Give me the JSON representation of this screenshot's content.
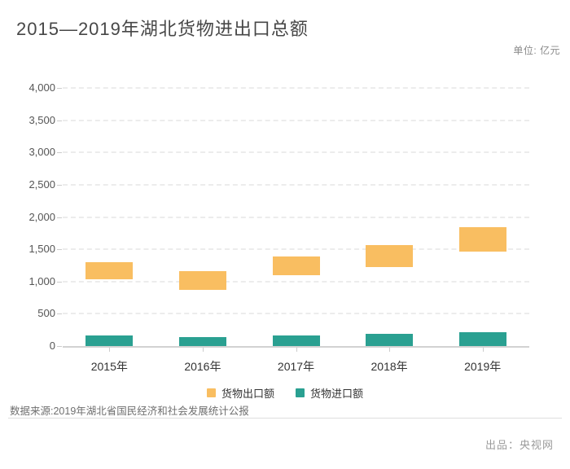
{
  "header": {
    "title": "2015—2019年湖北货物进出口总额",
    "unit_label": "单位: 亿元"
  },
  "footer": {
    "source": "数据来源:2019年湖北省国民经济和社会发展统计公报",
    "producer": "出品：央视网"
  },
  "chart_data": {
    "type": "bar",
    "subtype": "floating-range-columns",
    "title": "2015—2019年湖北货物进出口总额",
    "unit": "亿元",
    "categories": [
      "2015年",
      "2016年",
      "2017年",
      "2018年",
      "2019年"
    ],
    "series": [
      {
        "name": "货物出口额",
        "color": "#F9BE61",
        "ranges": [
          [
            1030,
            1300
          ],
          [
            875,
            1155
          ],
          [
            1095,
            1390
          ],
          [
            1220,
            1570
          ],
          [
            1460,
            1840
          ]
        ]
      },
      {
        "name": "货物进口额",
        "color": "#2AA091",
        "ranges": [
          [
            0,
            160
          ],
          [
            0,
            135
          ],
          [
            0,
            165
          ],
          [
            0,
            185
          ],
          [
            0,
            215
          ]
        ]
      }
    ],
    "ylim": [
      0,
      4000
    ],
    "ytick_step": 500,
    "ytick_labels": [
      "0",
      "500",
      "1,000",
      "1,500",
      "2,000",
      "2,500",
      "3,000",
      "3,500",
      "4,000"
    ],
    "grid": "dashed-horizontal",
    "legend_position": "bottom-center"
  },
  "colors": {
    "export_bar": "#F9BE61",
    "import_bar": "#2AA091",
    "grid_line": "#ECECEC",
    "axis_line": "#D2D2D2",
    "title_text": "#474747",
    "background": "#FFFFFF"
  }
}
